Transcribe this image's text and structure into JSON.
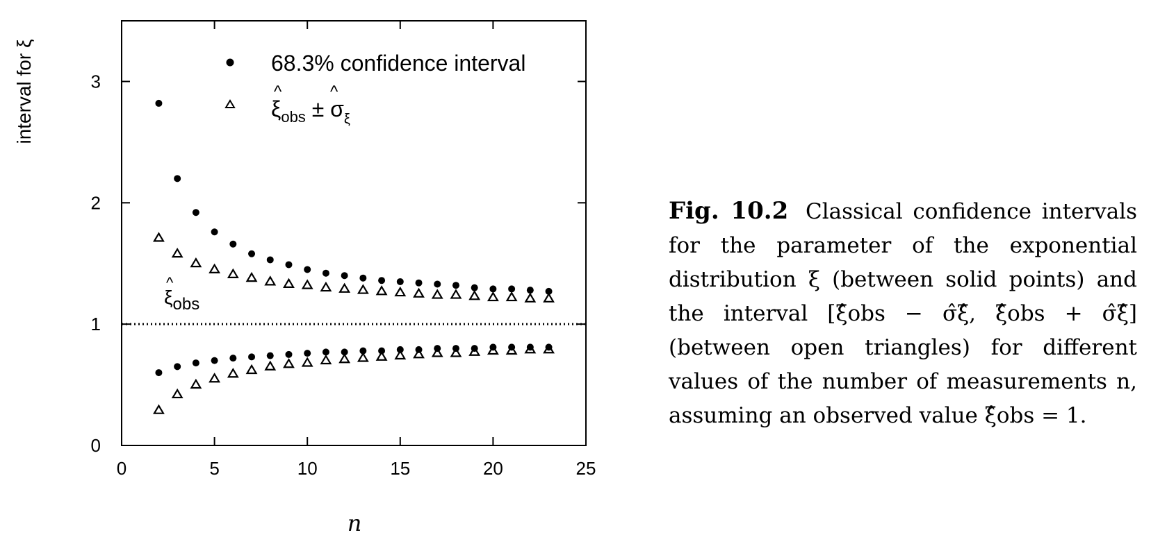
{
  "chart_data": {
    "type": "scatter",
    "title": "",
    "xlabel": "n",
    "ylabel": "interval for ξ",
    "xlim": [
      0,
      25
    ],
    "ylim": [
      0,
      3.5
    ],
    "x_ticks": [
      "0",
      "5",
      "10",
      "15",
      "20",
      "25"
    ],
    "y_ticks": [
      "0",
      "1",
      "2",
      "3"
    ],
    "grid": false,
    "legend_position": "top",
    "reference_line": {
      "y": 1,
      "style": "dotted",
      "label_base": "ξ",
      "label_hat": "^",
      "label_sub": "obs"
    },
    "x": [
      2,
      3,
      4,
      5,
      6,
      7,
      8,
      9,
      10,
      11,
      12,
      13,
      14,
      15,
      16,
      17,
      18,
      19,
      20,
      21,
      22,
      23
    ],
    "series": [
      {
        "name": "68.3% confidence interval",
        "marker": "filled-circle",
        "upper": [
          2.82,
          2.2,
          1.92,
          1.76,
          1.66,
          1.58,
          1.53,
          1.49,
          1.45,
          1.42,
          1.4,
          1.38,
          1.36,
          1.35,
          1.34,
          1.33,
          1.32,
          1.3,
          1.29,
          1.29,
          1.28,
          1.27
        ],
        "lower": [
          0.6,
          0.65,
          0.68,
          0.7,
          0.72,
          0.73,
          0.74,
          0.75,
          0.76,
          0.77,
          0.77,
          0.78,
          0.78,
          0.79,
          0.79,
          0.8,
          0.8,
          0.8,
          0.81,
          0.81,
          0.81,
          0.81
        ]
      },
      {
        "name": "ξobs ± σξ",
        "marker": "open-triangle",
        "upper": [
          1.71,
          1.58,
          1.5,
          1.45,
          1.41,
          1.38,
          1.35,
          1.33,
          1.32,
          1.3,
          1.29,
          1.28,
          1.27,
          1.26,
          1.25,
          1.24,
          1.24,
          1.23,
          1.22,
          1.22,
          1.21,
          1.21
        ],
        "lower": [
          0.29,
          0.42,
          0.5,
          0.55,
          0.59,
          0.62,
          0.65,
          0.67,
          0.68,
          0.7,
          0.71,
          0.72,
          0.73,
          0.74,
          0.75,
          0.76,
          0.76,
          0.77,
          0.78,
          0.78,
          0.79,
          0.79
        ]
      }
    ]
  },
  "legend": {
    "item1_text": "68.3% confidence interval",
    "item2_xi": "ξ",
    "item2_hat": "^",
    "item2_obs": "obs",
    "item2_pm": " ± σ",
    "item2_sub": "ξ"
  },
  "caption": {
    "label": "Fig. 10.2",
    "text": "Classical confidence intervals for the parameter of the exponential distribution ξ (between solid points) and the interval [ξ̂obs − σ̂ξ̂, ξ̂obs + σ̂ξ̂] (between open triangles) for different values of the number of measurements n, assuming an observed value ξ̂obs = 1."
  }
}
